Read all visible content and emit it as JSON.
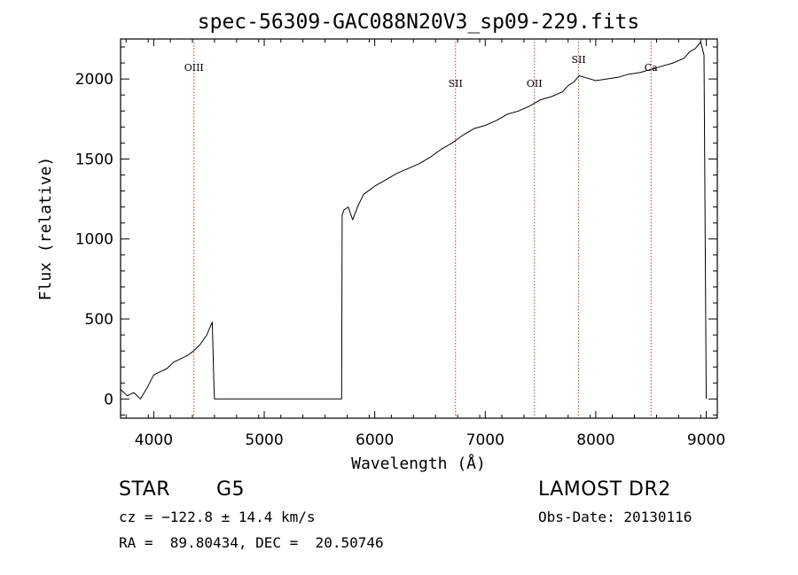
{
  "chart_data": {
    "type": "line",
    "title": "spec-56309-GAC088N20V3_sp09-229.fits",
    "xlabel": "Wavelength (Å)",
    "ylabel": "Flux (relative)",
    "xlim": [
      3700,
      9100
    ],
    "ylim": [
      -120,
      2250
    ],
    "xticks": [
      4000,
      5000,
      6000,
      7000,
      8000,
      9000
    ],
    "yticks": [
      0,
      500,
      1000,
      1500,
      2000
    ],
    "grid": false,
    "series": [
      {
        "color": "#000000",
        "x": [
          3700,
          3760,
          3820,
          3880,
          3940,
          4000,
          4060,
          4120,
          4180,
          4240,
          4300,
          4360,
          4420,
          4480,
          4530,
          4545,
          4550,
          5000,
          5500,
          5700,
          5705,
          5720,
          5760,
          5800,
          5850,
          5900,
          5960,
          6000,
          6100,
          6200,
          6300,
          6400,
          6500,
          6600,
          6700,
          6800,
          6900,
          7000,
          7100,
          7200,
          7300,
          7400,
          7500,
          7600,
          7700,
          7750,
          7800,
          7850,
          7900,
          8000,
          8100,
          8200,
          8300,
          8400,
          8500,
          8600,
          8700,
          8800,
          8850,
          8900,
          8950,
          8980,
          9000
        ],
        "y": [
          60,
          20,
          40,
          0,
          70,
          150,
          170,
          190,
          230,
          250,
          270,
          300,
          340,
          400,
          480,
          80,
          0,
          0,
          0,
          0,
          1150,
          1180,
          1200,
          1120,
          1210,
          1280,
          1310,
          1330,
          1370,
          1410,
          1440,
          1470,
          1510,
          1560,
          1600,
          1650,
          1690,
          1710,
          1740,
          1780,
          1800,
          1830,
          1870,
          1890,
          1920,
          1960,
          1980,
          2020,
          2010,
          1990,
          2000,
          2010,
          2030,
          2040,
          2060,
          2080,
          2100,
          2130,
          2170,
          2190,
          2230,
          2150,
          0
        ]
      }
    ],
    "line_labels": [
      {
        "label": "OIII",
        "x": 4364,
        "ylabel_pos": 2050
      },
      {
        "label": "SII",
        "x": 6731,
        "ylabel_pos": 1950
      },
      {
        "label": "OII",
        "x": 7445,
        "ylabel_pos": 1950
      },
      {
        "label": "SII",
        "x": 7845,
        "ylabel_pos": 2100
      },
      {
        "label": "Ca",
        "x": 8500,
        "ylabel_pos": 2050
      }
    ]
  },
  "info": {
    "class": "STAR",
    "subclass": "G5",
    "cz": "cz = −122.8 ± 14.4 km/s",
    "coords": "RA =  89.80434, DEC =  20.50746",
    "survey": "LAMOST DR2",
    "obs_date": "Obs-Date: 20130116"
  },
  "colors": {
    "axis": "#000000",
    "spectrum": "#000000",
    "line_marker": "#c0392b"
  }
}
